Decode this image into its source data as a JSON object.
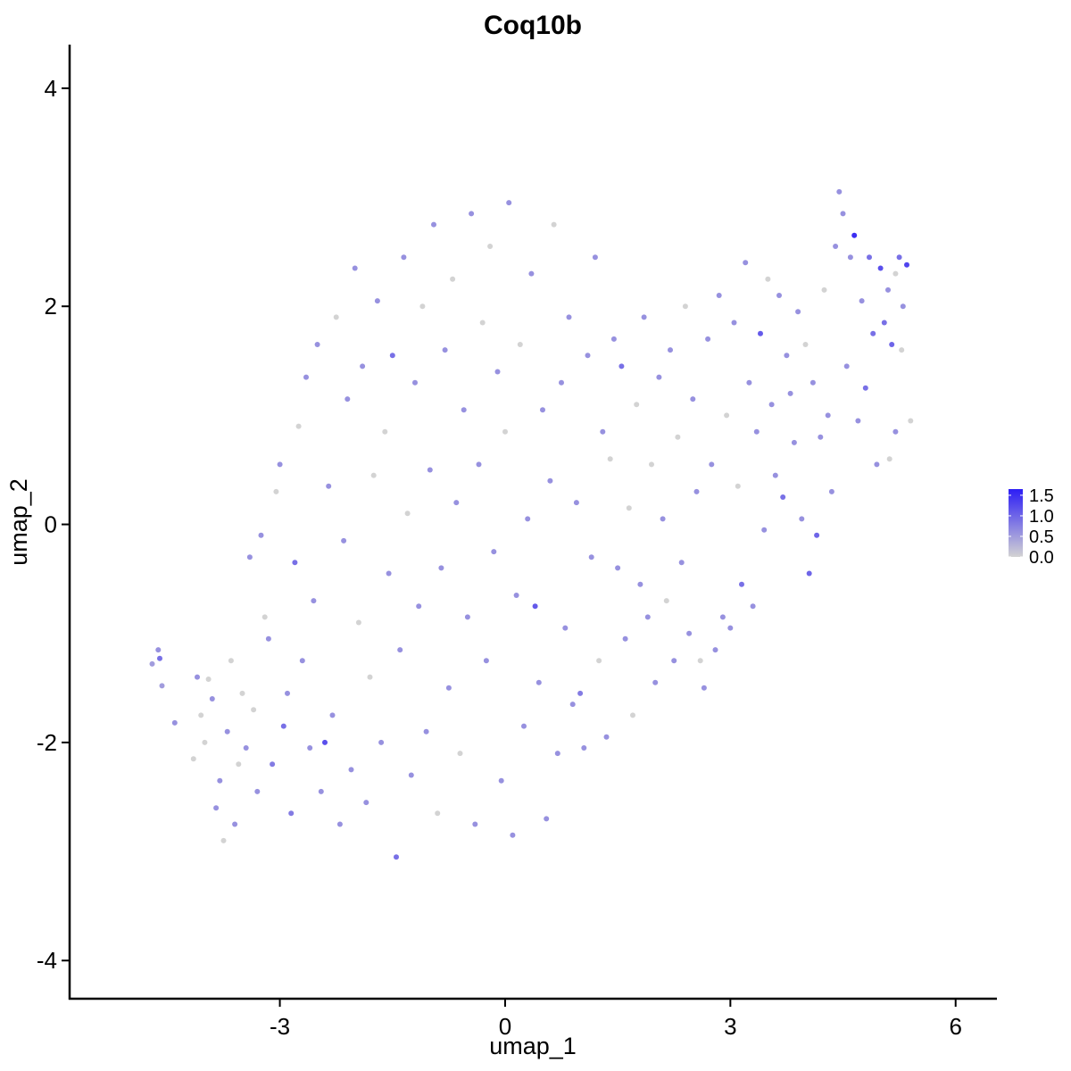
{
  "chart_data": {
    "type": "scatter",
    "title": "Coq10b",
    "xlabel": "umap_1",
    "ylabel": "umap_2",
    "xlim": [
      -5.8,
      6.55
    ],
    "ylim": [
      -4.35,
      4.4
    ],
    "xticks": [
      -3,
      0,
      3,
      6
    ],
    "yticks": [
      -4,
      -2,
      0,
      2,
      4
    ],
    "xtick_labels": [
      "-3",
      "0",
      "3",
      "6"
    ],
    "ytick_labels": [
      "-4",
      "-2",
      "0",
      "2",
      "4"
    ],
    "grid": false,
    "legend": {
      "placement": "right",
      "type": "colorbar",
      "range": [
        0,
        1.65
      ],
      "ticks": [
        0.0,
        0.5,
        1.0,
        1.5
      ],
      "tick_labels": [
        "0.0",
        "0.5",
        "1.0",
        "1.5"
      ]
    },
    "colors": {
      "low": "#d3d3d3",
      "high": "#2d1ef5"
    },
    "points_note_only_shape": [],
    "points": [
      [
        -4.7,
        -1.28,
        0.5
      ],
      [
        -4.62,
        -1.15,
        0.6
      ],
      [
        -4.6,
        -1.23,
        0.9
      ],
      [
        -4.57,
        -1.48,
        0.5
      ],
      [
        -4.4,
        -1.82,
        0.6
      ],
      [
        -4.15,
        -2.15,
        0.0
      ],
      [
        -4.1,
        -1.4,
        0.6
      ],
      [
        -4.05,
        -1.75,
        0.0
      ],
      [
        -4.0,
        -2.0,
        0.0
      ],
      [
        -3.95,
        -1.42,
        0.0
      ],
      [
        -3.9,
        -1.6,
        0.6
      ],
      [
        -3.85,
        -2.6,
        0.6
      ],
      [
        -3.8,
        -2.35,
        0.6
      ],
      [
        -3.75,
        -2.9,
        0.0
      ],
      [
        -3.7,
        -1.9,
        0.6
      ],
      [
        -3.65,
        -1.25,
        0.0
      ],
      [
        -3.6,
        -2.75,
        0.6
      ],
      [
        -3.55,
        -2.2,
        0.0
      ],
      [
        -3.5,
        -1.55,
        0.0
      ],
      [
        -3.45,
        -2.05,
        0.6
      ],
      [
        -3.4,
        -0.3,
        0.6
      ],
      [
        -3.35,
        -1.7,
        0.0
      ],
      [
        -3.3,
        -2.45,
        0.6
      ],
      [
        -3.25,
        -0.1,
        0.6
      ],
      [
        -3.2,
        -0.85,
        0.0
      ],
      [
        -3.15,
        -1.05,
        0.6
      ],
      [
        -3.1,
        -2.2,
        0.8
      ],
      [
        -3.05,
        0.3,
        0.0
      ],
      [
        -3.0,
        0.55,
        0.6
      ],
      [
        -2.95,
        -1.85,
        0.9
      ],
      [
        -2.9,
        -1.55,
        0.6
      ],
      [
        -2.85,
        -2.65,
        0.8
      ],
      [
        -2.8,
        -0.35,
        0.9
      ],
      [
        -2.75,
        0.9,
        0.0
      ],
      [
        -2.7,
        -1.25,
        0.6
      ],
      [
        -2.65,
        1.35,
        0.6
      ],
      [
        -2.6,
        -2.05,
        0.6
      ],
      [
        -2.55,
        -0.7,
        0.6
      ],
      [
        -2.5,
        1.65,
        0.6
      ],
      [
        -2.45,
        -2.45,
        0.6
      ],
      [
        -2.4,
        -2.0,
        1.2
      ],
      [
        -2.35,
        0.35,
        0.6
      ],
      [
        -2.3,
        -1.75,
        0.6
      ],
      [
        -2.25,
        1.9,
        0.0
      ],
      [
        -2.2,
        -2.75,
        0.6
      ],
      [
        -2.15,
        -0.15,
        0.6
      ],
      [
        -2.1,
        1.15,
        0.6
      ],
      [
        -2.05,
        -2.25,
        0.6
      ],
      [
        -2.0,
        2.35,
        0.6
      ],
      [
        -1.95,
        -0.9,
        0.0
      ],
      [
        -1.9,
        1.45,
        0.6
      ],
      [
        -1.85,
        -2.55,
        0.6
      ],
      [
        -1.8,
        -1.4,
        0.0
      ],
      [
        -1.75,
        0.45,
        0.0
      ],
      [
        -1.7,
        2.05,
        0.6
      ],
      [
        -1.65,
        -2.0,
        0.6
      ],
      [
        -1.6,
        0.85,
        0.0
      ],
      [
        -1.55,
        -0.45,
        0.6
      ],
      [
        -1.5,
        1.55,
        0.9
      ],
      [
        -1.45,
        -3.05,
        0.9
      ],
      [
        -1.4,
        -1.15,
        0.6
      ],
      [
        -1.35,
        2.45,
        0.6
      ],
      [
        -1.3,
        0.1,
        0.0
      ],
      [
        -1.25,
        -2.3,
        0.6
      ],
      [
        -1.2,
        1.3,
        0.6
      ],
      [
        -1.15,
        -0.75,
        0.6
      ],
      [
        -1.1,
        2.0,
        0.0
      ],
      [
        -1.05,
        -1.9,
        0.6
      ],
      [
        -1.0,
        0.5,
        0.6
      ],
      [
        -0.95,
        2.75,
        0.6
      ],
      [
        -0.9,
        -2.65,
        0.0
      ],
      [
        -0.85,
        -0.4,
        0.6
      ],
      [
        -0.8,
        1.6,
        0.6
      ],
      [
        -0.75,
        -1.5,
        0.6
      ],
      [
        -0.7,
        2.25,
        0.0
      ],
      [
        -0.65,
        0.2,
        0.6
      ],
      [
        -0.6,
        -2.1,
        0.0
      ],
      [
        -0.55,
        1.05,
        0.6
      ],
      [
        -0.5,
        -0.85,
        0.6
      ],
      [
        -0.45,
        2.85,
        0.6
      ],
      [
        -0.4,
        -2.75,
        0.6
      ],
      [
        -0.35,
        0.55,
        0.6
      ],
      [
        -0.3,
        1.85,
        0.0
      ],
      [
        -0.25,
        -1.25,
        0.6
      ],
      [
        -0.2,
        2.55,
        0.0
      ],
      [
        -0.15,
        -0.25,
        0.6
      ],
      [
        -0.1,
        1.4,
        0.6
      ],
      [
        -0.05,
        -2.35,
        0.6
      ],
      [
        0.0,
        0.85,
        0.0
      ],
      [
        0.05,
        2.95,
        0.6
      ],
      [
        0.1,
        -2.85,
        0.6
      ],
      [
        0.15,
        -0.65,
        0.6
      ],
      [
        0.2,
        1.65,
        0.0
      ],
      [
        0.25,
        -1.85,
        0.6
      ],
      [
        0.3,
        0.05,
        0.6
      ],
      [
        0.35,
        2.3,
        0.6
      ],
      [
        0.4,
        -0.75,
        1.1
      ],
      [
        0.45,
        -1.45,
        0.6
      ],
      [
        0.5,
        1.05,
        0.6
      ],
      [
        0.55,
        -2.7,
        0.6
      ],
      [
        0.6,
        0.4,
        0.6
      ],
      [
        0.65,
        2.75,
        0.0
      ],
      [
        0.7,
        -2.1,
        0.6
      ],
      [
        0.75,
        1.3,
        0.6
      ],
      [
        0.8,
        -0.95,
        0.6
      ],
      [
        0.85,
        1.9,
        0.6
      ],
      [
        0.9,
        -1.65,
        0.6
      ],
      [
        0.95,
        0.2,
        0.6
      ],
      [
        1.0,
        -1.55,
        0.8
      ],
      [
        1.05,
        -2.05,
        0.6
      ],
      [
        1.1,
        1.55,
        0.6
      ],
      [
        1.15,
        -0.3,
        0.6
      ],
      [
        1.2,
        2.45,
        0.6
      ],
      [
        1.25,
        -1.25,
        0.0
      ],
      [
        1.3,
        0.85,
        0.6
      ],
      [
        1.35,
        -1.95,
        0.6
      ],
      [
        1.4,
        0.6,
        0.0
      ],
      [
        1.45,
        1.7,
        0.6
      ],
      [
        1.5,
        -0.4,
        0.6
      ],
      [
        1.55,
        1.45,
        0.9
      ],
      [
        1.6,
        -1.05,
        0.6
      ],
      [
        1.65,
        0.15,
        0.0
      ],
      [
        1.7,
        -1.75,
        0.0
      ],
      [
        1.75,
        1.1,
        0.0
      ],
      [
        1.8,
        -0.55,
        0.6
      ],
      [
        1.85,
        1.9,
        0.6
      ],
      [
        1.9,
        -0.85,
        0.6
      ],
      [
        1.95,
        0.55,
        0.0
      ],
      [
        2.0,
        -1.45,
        0.6
      ],
      [
        2.05,
        1.35,
        0.6
      ],
      [
        2.1,
        0.05,
        0.6
      ],
      [
        2.15,
        -0.7,
        0.0
      ],
      [
        2.2,
        1.6,
        0.6
      ],
      [
        2.25,
        -1.25,
        0.6
      ],
      [
        2.3,
        0.8,
        0.0
      ],
      [
        2.35,
        -0.35,
        0.6
      ],
      [
        2.4,
        2.0,
        0.0
      ],
      [
        2.45,
        -1.0,
        0.6
      ],
      [
        2.5,
        1.15,
        0.6
      ],
      [
        2.55,
        0.3,
        0.6
      ],
      [
        2.6,
        -1.25,
        0.0
      ],
      [
        2.65,
        -1.5,
        0.6
      ],
      [
        2.7,
        1.7,
        0.6
      ],
      [
        2.75,
        0.55,
        0.6
      ],
      [
        2.8,
        -1.15,
        0.6
      ],
      [
        2.85,
        2.1,
        0.6
      ],
      [
        2.9,
        -0.85,
        0.6
      ],
      [
        2.95,
        1.0,
        0.0
      ],
      [
        3.0,
        -0.95,
        0.6
      ],
      [
        3.05,
        1.85,
        0.6
      ],
      [
        3.1,
        0.35,
        0.0
      ],
      [
        3.15,
        -0.55,
        0.9
      ],
      [
        3.2,
        2.4,
        0.6
      ],
      [
        3.25,
        1.3,
        0.6
      ],
      [
        3.3,
        -0.75,
        0.6
      ],
      [
        3.35,
        0.85,
        0.6
      ],
      [
        3.4,
        1.75,
        1.1
      ],
      [
        3.45,
        -0.05,
        0.6
      ],
      [
        3.5,
        2.25,
        0.0
      ],
      [
        3.55,
        1.1,
        0.6
      ],
      [
        3.6,
        0.45,
        0.6
      ],
      [
        3.65,
        2.1,
        0.6
      ],
      [
        3.7,
        0.25,
        0.9
      ],
      [
        3.75,
        1.55,
        0.6
      ],
      [
        3.8,
        1.2,
        0.6
      ],
      [
        3.85,
        0.75,
        0.6
      ],
      [
        3.9,
        1.95,
        0.6
      ],
      [
        3.95,
        0.05,
        0.6
      ],
      [
        4.0,
        1.65,
        0.0
      ],
      [
        4.05,
        -0.45,
        1.0
      ],
      [
        4.1,
        1.3,
        0.6
      ],
      [
        4.15,
        -0.1,
        1.0
      ],
      [
        4.2,
        0.8,
        0.6
      ],
      [
        4.25,
        2.15,
        0.0
      ],
      [
        4.3,
        1.0,
        0.6
      ],
      [
        4.35,
        0.3,
        0.6
      ],
      [
        4.4,
        2.55,
        0.6
      ],
      [
        4.45,
        3.05,
        0.6
      ],
      [
        4.5,
        2.85,
        0.6
      ],
      [
        4.55,
        1.45,
        0.6
      ],
      [
        4.6,
        2.45,
        0.6
      ],
      [
        4.65,
        2.65,
        1.5
      ],
      [
        4.7,
        0.95,
        0.6
      ],
      [
        4.75,
        2.05,
        0.6
      ],
      [
        4.8,
        1.25,
        0.9
      ],
      [
        4.85,
        2.45,
        0.9
      ],
      [
        4.9,
        1.75,
        0.9
      ],
      [
        4.95,
        0.55,
        0.6
      ],
      [
        5.0,
        2.35,
        1.2
      ],
      [
        5.05,
        1.85,
        0.9
      ],
      [
        5.1,
        2.15,
        0.6
      ],
      [
        5.15,
        1.65,
        1.0
      ],
      [
        5.2,
        0.85,
        0.6
      ],
      [
        5.25,
        2.45,
        0.9
      ],
      [
        5.3,
        2.0,
        0.6
      ],
      [
        5.35,
        2.38,
        1.3
      ],
      [
        5.4,
        0.95,
        0.0
      ],
      [
        5.12,
        0.6,
        0.0
      ],
      [
        5.28,
        1.6,
        0.0
      ],
      [
        5.2,
        2.3,
        0.0
      ]
    ]
  }
}
